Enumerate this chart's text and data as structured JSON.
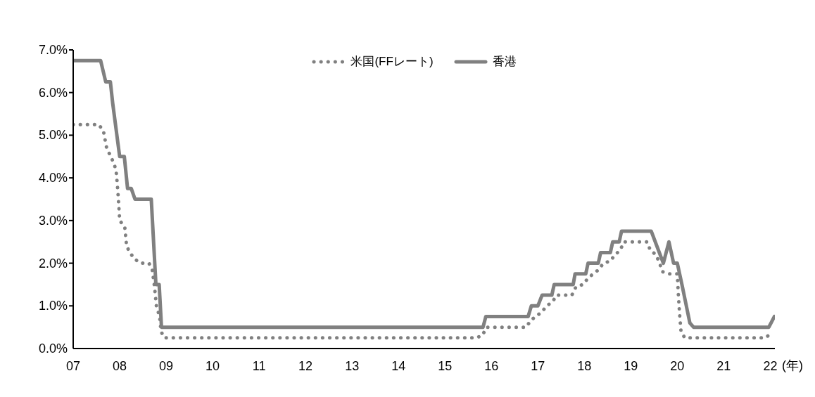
{
  "chart_data": {
    "type": "line",
    "xlabel": "(年)",
    "xlim": [
      2007,
      2022.1
    ],
    "xticks": [
      {
        "value": 2007,
        "label": "07"
      },
      {
        "value": 2008,
        "label": "08"
      },
      {
        "value": 2009,
        "label": "09"
      },
      {
        "value": 2010,
        "label": "10"
      },
      {
        "value": 2011,
        "label": "11"
      },
      {
        "value": 2012,
        "label": "12"
      },
      {
        "value": 2013,
        "label": "13"
      },
      {
        "value": 2014,
        "label": "14"
      },
      {
        "value": 2015,
        "label": "15"
      },
      {
        "value": 2016,
        "label": "16"
      },
      {
        "value": 2017,
        "label": "17"
      },
      {
        "value": 2018,
        "label": "18"
      },
      {
        "value": 2019,
        "label": "19"
      },
      {
        "value": 2020,
        "label": "20"
      },
      {
        "value": 2021,
        "label": "21"
      },
      {
        "value": 2022,
        "label": "22"
      }
    ],
    "ylim": [
      0,
      7
    ],
    "yticks": [
      {
        "value": 0,
        "label": "0.0%"
      },
      {
        "value": 1,
        "label": "1.0%"
      },
      {
        "value": 2,
        "label": "2.0%"
      },
      {
        "value": 3,
        "label": "3.0%"
      },
      {
        "value": 4,
        "label": "4.0%"
      },
      {
        "value": 5,
        "label": "5.0%"
      },
      {
        "value": 6,
        "label": "6.0%"
      },
      {
        "value": 7,
        "label": "7.0%"
      }
    ],
    "grid": false,
    "legend": "top",
    "marker": "none",
    "series": [
      {
        "name": "米国(FFレート)",
        "color": "#808080",
        "line_style": "dotted",
        "x": [
          2007,
          2007.55,
          2007.65,
          2007.72,
          2007.81,
          2007.89,
          2007.93,
          2007.96,
          2007.99,
          2008.0,
          2008.11,
          2008.15,
          2008.22,
          2008.32,
          2008.45,
          2008.63,
          2008.7,
          2008.75,
          2008.79,
          2008.86,
          2008.89,
          2008.96,
          2015.66,
          2015.8,
          2015.9,
          2016.75,
          2016.84,
          2016.95,
          2017.08,
          2017.19,
          2017.32,
          2017.4,
          2017.73,
          2017.82,
          2017.97,
          2018.08,
          2018.19,
          2018.31,
          2018.41,
          2018.56,
          2018.66,
          2018.77,
          2018.85,
          2019.35,
          2019.42,
          2019.54,
          2019.62,
          2019.68,
          2019.83,
          2020.0,
          2020.02,
          2020.05,
          2020.08,
          2020.16,
          2021.89,
          2022.02
        ],
        "values": [
          5.25,
          5.25,
          5.1,
          4.7,
          4.5,
          4.3,
          4.1,
          3.7,
          3.2,
          3.0,
          2.85,
          2.4,
          2.25,
          2.1,
          2.0,
          2.0,
          1.85,
          1.45,
          1.0,
          0.75,
          0.4,
          0.25,
          0.25,
          0.3,
          0.5,
          0.5,
          0.65,
          0.75,
          0.85,
          1.0,
          1.1,
          1.25,
          1.25,
          1.45,
          1.5,
          1.65,
          1.75,
          1.85,
          2.0,
          2.05,
          2.2,
          2.3,
          2.5,
          2.5,
          2.3,
          2.2,
          2.0,
          1.8,
          1.75,
          1.75,
          1.3,
          0.8,
          0.4,
          0.25,
          0.25,
          0.35
        ]
      },
      {
        "name": "香港",
        "color": "#808080",
        "line_style": "solid",
        "x": [
          2007,
          2007.59,
          2007.7,
          2007.8,
          2007.85,
          2008.0,
          2008.1,
          2008.17,
          2008.25,
          2008.33,
          2008.68,
          2008.78,
          2008.85,
          2008.9,
          2015.82,
          2015.88,
          2016.79,
          2016.86,
          2017.0,
          2017.09,
          2017.3,
          2017.35,
          2017.76,
          2017.8,
          2018.03,
          2018.08,
          2018.3,
          2018.35,
          2018.56,
          2018.61,
          2018.75,
          2018.8,
          2019.44,
          2019.7,
          2019.82,
          2019.92,
          2020.0,
          2020.1,
          2020.27,
          2020.35,
          2021.97,
          2022.09
        ],
        "values": [
          6.75,
          6.75,
          6.25,
          6.25,
          5.75,
          4.5,
          4.5,
          3.75,
          3.75,
          3.5,
          3.5,
          1.5,
          1.5,
          0.5,
          0.5,
          0.75,
          0.75,
          1.0,
          1.0,
          1.25,
          1.25,
          1.5,
          1.5,
          1.75,
          1.75,
          2.0,
          2.0,
          2.25,
          2.25,
          2.5,
          2.5,
          2.75,
          2.75,
          2.0,
          2.5,
          2.0,
          2.0,
          1.5,
          0.6,
          0.5,
          0.5,
          0.75
        ]
      }
    ]
  }
}
